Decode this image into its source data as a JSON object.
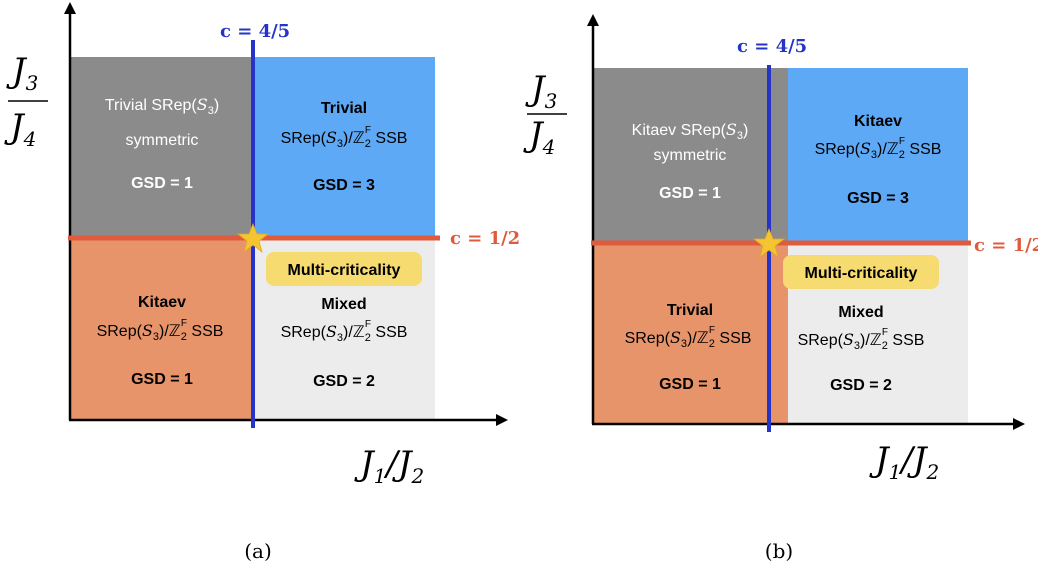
{
  "colors": {
    "gray": "#8c8b8b",
    "blue": "#5ea9f5",
    "orange": "#e8946b",
    "light_gray": "#ececec",
    "blue_line": "#2434c8",
    "red_line": "#e05a3c",
    "star": "#f4c531",
    "badge": "#f6db70"
  },
  "y_axis": {
    "num": "J3",
    "den": "J4"
  },
  "x_axis": "J1/J2",
  "vertical_line_label": "c = 4/5",
  "horizontal_line_label": "c = 1/2",
  "multicriticality_label": "Multi-criticality",
  "panels": [
    {
      "caption": "(a)",
      "top_left": {
        "name": "Trivial",
        "line1": "Trivial SRep(S3)",
        "line2": "symmetric",
        "gsd": "GSD = 1"
      },
      "top_right": {
        "name": "Trivial",
        "line2": "SRep(S3)/Z2F SSB",
        "gsd": "GSD = 3"
      },
      "bottom_left": {
        "name": "Kitaev",
        "line2": "SRep(S3)/Z2F SSB",
        "gsd": "GSD = 1"
      },
      "bottom_right": {
        "name": "Mixed",
        "line2": "SRep(S3)/Z2F SSB",
        "gsd": "GSD = 2"
      }
    },
    {
      "caption": "(b)",
      "top_left": {
        "name": "Kitaev",
        "line1": "Kitaev SRep(S3)",
        "line2": "symmetric",
        "gsd": "GSD = 1"
      },
      "top_right": {
        "name": "Kitaev",
        "line2": "SRep(S3)/Z2F SSB",
        "gsd": "GSD = 3"
      },
      "bottom_left": {
        "name": "Trivial",
        "line2": "SRep(S3)/Z2F SSB",
        "gsd": "GSD = 1"
      },
      "bottom_right": {
        "name": "Mixed",
        "line2": "SRep(S3)/Z2F SSB",
        "gsd": "GSD = 2"
      }
    }
  ]
}
